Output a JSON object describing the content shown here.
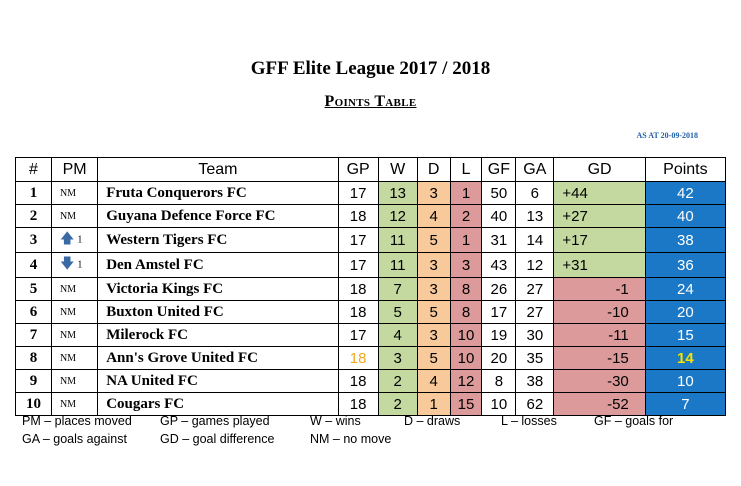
{
  "title": "GFF Elite League 2017 / 2018",
  "subtitle": "Points Table",
  "as_at": "AS AT 20-09-2018",
  "headers": [
    "#",
    "PM",
    "Team",
    "GP",
    "W",
    "D",
    "L",
    "GF",
    "GA",
    "GD",
    "Points"
  ],
  "rows": [
    {
      "pos": "1",
      "pm": "NM",
      "pm_icon": "",
      "team": "Fruta Conquerors FC",
      "gp": "17",
      "w": "13",
      "d": "3",
      "l": "1",
      "gf": "50",
      "ga": "6",
      "gd": "+44",
      "points": "42"
    },
    {
      "pos": "2",
      "pm": "NM",
      "pm_icon": "",
      "team": "Guyana Defence Force FC",
      "gp": "18",
      "w": "12",
      "d": "4",
      "l": "2",
      "gf": "40",
      "ga": "13",
      "gd": "+27",
      "points": "40"
    },
    {
      "pos": "3",
      "pm": "1",
      "pm_icon": "arrow-up-icon",
      "team": "Western Tigers FC",
      "gp": "17",
      "w": "11",
      "d": "5",
      "l": "1",
      "gf": "31",
      "ga": "14",
      "gd": "+17",
      "points": "38"
    },
    {
      "pos": "4",
      "pm": "1",
      "pm_icon": "arrow-down-icon",
      "team": "Den Amstel FC",
      "gp": "17",
      "w": "11",
      "d": "3",
      "l": "3",
      "gf": "43",
      "ga": "12",
      "gd": "+31",
      "points": "36"
    },
    {
      "pos": "5",
      "pm": "NM",
      "pm_icon": "",
      "team": "Victoria Kings FC",
      "gp": "18",
      "w": "7",
      "d": "3",
      "l": "8",
      "gf": "26",
      "ga": "27",
      "gd": "-1",
      "points": "24"
    },
    {
      "pos": "6",
      "pm": "NM",
      "pm_icon": "",
      "team": "Buxton United FC",
      "gp": "18",
      "w": "5",
      "d": "5",
      "l": "8",
      "gf": "17",
      "ga": "27",
      "gd": "-10",
      "points": "20"
    },
    {
      "pos": "7",
      "pm": "NM",
      "pm_icon": "",
      "team": "Milerock FC",
      "gp": "17",
      "w": "4",
      "d": "3",
      "l": "10",
      "gf": "19",
      "ga": "30",
      "gd": "-11",
      "points": "15"
    },
    {
      "pos": "8",
      "pm": "NM",
      "pm_icon": "",
      "team": "Ann's Grove United FC",
      "gp": "18",
      "w": "3",
      "d": "5",
      "l": "10",
      "gf": "20",
      "ga": "35",
      "gd": "-15",
      "points": "14",
      "highlight": true
    },
    {
      "pos": "9",
      "pm": "NM",
      "pm_icon": "",
      "team": "NA United FC",
      "gp": "18",
      "w": "2",
      "d": "4",
      "l": "12",
      "gf": "8",
      "ga": "38",
      "gd": "-30",
      "points": "10"
    },
    {
      "pos": "10",
      "pm": "NM",
      "pm_icon": "",
      "team": "Cougars FC",
      "gp": "18",
      "w": "2",
      "d": "1",
      "l": "15",
      "gf": "10",
      "ga": "62",
      "gd": "-52",
      "points": "7"
    }
  ],
  "legend": {
    "pm": "PM – places moved",
    "gp": "GP – games played",
    "w": "W – wins",
    "d": "D – draws",
    "l": "L – losses",
    "gf": "GF – goals for",
    "ga": "GA – goals against",
    "gd": "GD – goal difference",
    "nm": "NM – no move"
  },
  "colors": {
    "wins": "#c4d9a0",
    "draws": "#f8c99a",
    "losses": "#dd9a9a",
    "points": "#1a78c6",
    "highlight_gp": "#f0a91a",
    "highlight_points": "#f5e400",
    "as_at": "#1f5fa8"
  }
}
